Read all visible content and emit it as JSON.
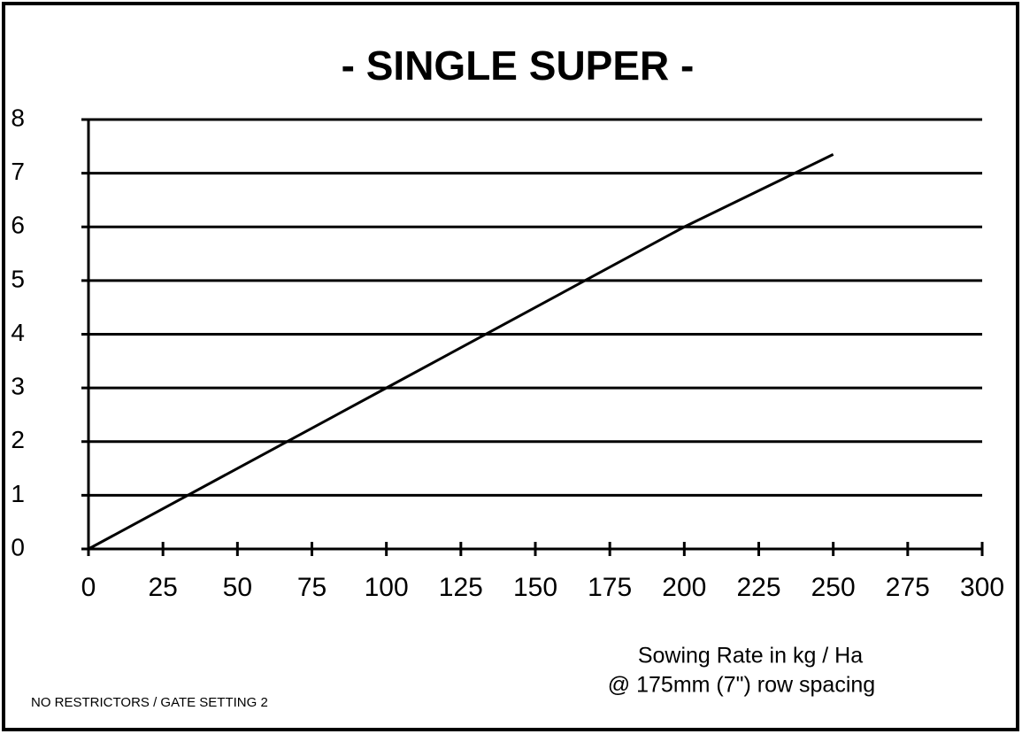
{
  "chart_data": {
    "type": "line",
    "title": "- SINGLE SUPER -",
    "xlabel": [
      "Sowing Rate in kg / Ha",
      "@ 175mm (7\") row spacing"
    ],
    "note": "NO RESTRICTORS / GATE SETTING 2",
    "x": [
      0,
      50,
      100,
      150,
      200,
      250
    ],
    "series": [
      {
        "color": "#000000",
        "values": [
          0,
          1.5,
          3,
          4.5,
          6,
          7.35
        ]
      }
    ],
    "xlim": [
      0,
      300
    ],
    "xticks": [
      0,
      25,
      50,
      75,
      100,
      125,
      150,
      175,
      200,
      225,
      250,
      275,
      300
    ],
    "ylim": [
      0,
      8
    ],
    "yticks": [
      0,
      1,
      2,
      3,
      4,
      5,
      6,
      7,
      8
    ],
    "grid": true
  }
}
